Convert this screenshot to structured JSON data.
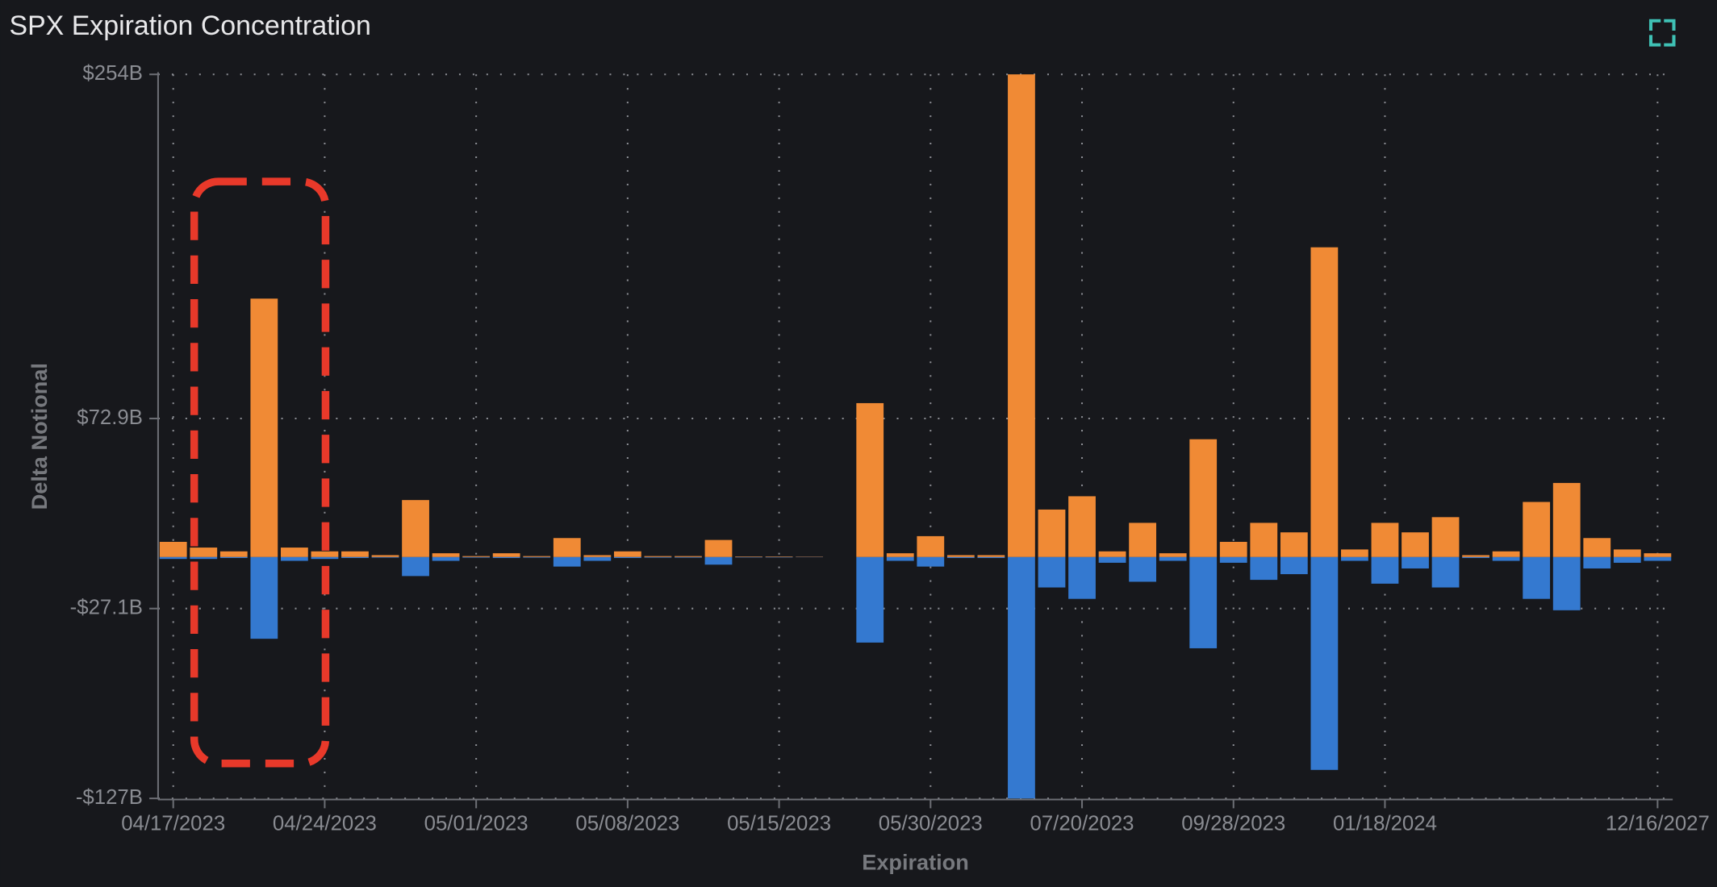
{
  "chart_data": {
    "type": "bar",
    "title": "SPX Expiration Concentration",
    "x_label": "Expiration",
    "y_label": "Delta Notional",
    "categories": [
      "04/17/2023",
      null,
      null,
      null,
      null,
      "04/24/2023",
      null,
      null,
      null,
      null,
      "05/01/2023",
      null,
      null,
      null,
      null,
      "05/08/2023",
      null,
      null,
      null,
      null,
      "05/15/2023",
      null,
      null,
      null,
      null,
      "05/30/2023",
      null,
      null,
      null,
      null,
      "07/20/2023",
      null,
      null,
      null,
      null,
      "09/28/2023",
      null,
      null,
      null,
      null,
      "01/18/2024",
      null,
      null,
      null,
      null,
      null,
      null,
      null,
      null,
      "12/16/2027"
    ],
    "series": [
      {
        "color": "#f08a35",
        "values": [
          8,
          5,
          3,
          136,
          5,
          3,
          3,
          1,
          30,
          2,
          0.5,
          2,
          0.5,
          10,
          1,
          3,
          0.5,
          0.5,
          9,
          0.3,
          0.3,
          0.2,
          0,
          81,
          2,
          11,
          1,
          1,
          254,
          25,
          32,
          3,
          18,
          2,
          62,
          8,
          18,
          13,
          163,
          4,
          18,
          13,
          21,
          1,
          3,
          29,
          39,
          10,
          4,
          2
        ]
      },
      {
        "color": "#3479d0",
        "values": [
          -1,
          -1,
          -0.5,
          -43,
          -2,
          -1,
          -0.5,
          -0.3,
          -10,
          -2,
          -0.3,
          -0.5,
          -0.3,
          -5,
          -2,
          -0.5,
          -0.3,
          -0.3,
          -4,
          -0.2,
          -0.2,
          -0.1,
          0,
          -45,
          -2,
          -5,
          -0.5,
          -0.5,
          -127,
          -16,
          -22,
          -3,
          -13,
          -2,
          -48,
          -3,
          -12,
          -9,
          -112,
          -2,
          -14,
          -6,
          -16,
          -0.5,
          -2,
          -22,
          -28,
          -6,
          -3,
          -2
        ]
      }
    ],
    "ylim": [
      -127,
      254
    ],
    "yticks": [
      {
        "value": 254,
        "label": "$254B"
      },
      {
        "value": 72.9,
        "label": "$72.9B"
      },
      {
        "value": -27.1,
        "label": "-$27.1B"
      },
      {
        "value": -127,
        "label": "-$127B"
      }
    ],
    "grid": true
  }
}
